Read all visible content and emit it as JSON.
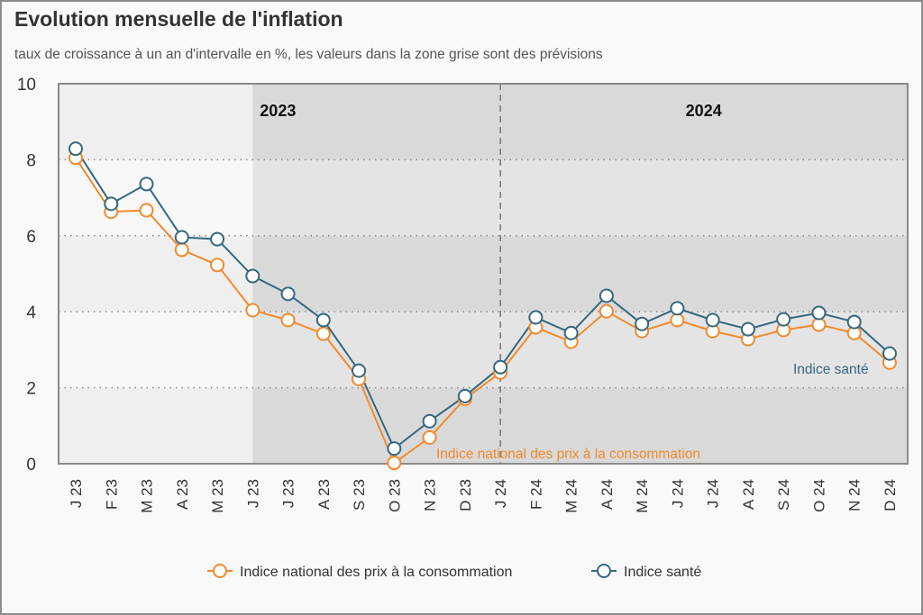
{
  "header": {
    "title": "Evolution mensuelle de l'inflation",
    "subtitle": "taux de croissance à un an d'intervalle en %, les valeurs dans la zone grise sont des prévisions"
  },
  "chart_data": {
    "type": "line",
    "title": "Evolution mensuelle de l'inflation",
    "subtitle": "taux de croissance à un an d'intervalle en %, les valeurs dans la zone grise sont des prévisions",
    "xlabel": "",
    "ylabel": "",
    "ylim": [
      0,
      10
    ],
    "yticks": [
      0,
      2,
      4,
      6,
      8,
      10
    ],
    "grid": "horizontal dotted",
    "categories": [
      "J 23",
      "F 23",
      "M 23",
      "A 23",
      "M 23",
      "J 23",
      "J 23",
      "A 23",
      "S 23",
      "O 23",
      "N 23",
      "D 23",
      "J 24",
      "F 24",
      "M 24",
      "A 24",
      "M 24",
      "J 24",
      "J 24",
      "A 24",
      "S 24",
      "O 24",
      "N 24",
      "D 24"
    ],
    "forecast_start_index": 5,
    "year_divider_index": 12,
    "year_labels": [
      {
        "text": "2023",
        "anchor_index": 5
      },
      {
        "text": "2024",
        "anchor_index": 18
      }
    ],
    "series": [
      {
        "name": "Indice national des prix à la consommation",
        "color": "#f28a2c",
        "inline_label": "Indice national des prix à la consommation",
        "values": [
          8.05,
          6.63,
          6.67,
          5.63,
          5.23,
          4.04,
          3.78,
          3.42,
          2.23,
          0.02,
          0.69,
          1.71,
          2.4,
          3.59,
          3.21,
          4.01,
          3.49,
          3.78,
          3.49,
          3.28,
          3.52,
          3.66,
          3.44,
          2.66
        ]
      },
      {
        "name": "Indice santé",
        "color": "#35687f",
        "inline_label": "Indice santé",
        "values": [
          8.29,
          6.84,
          7.36,
          5.96,
          5.91,
          4.94,
          4.47,
          3.78,
          2.45,
          0.4,
          1.12,
          1.78,
          2.54,
          3.85,
          3.44,
          4.42,
          3.68,
          4.09,
          3.78,
          3.54,
          3.8,
          3.97,
          3.73,
          2.9
        ]
      }
    ],
    "legend": {
      "placement": "bottom-center"
    }
  }
}
